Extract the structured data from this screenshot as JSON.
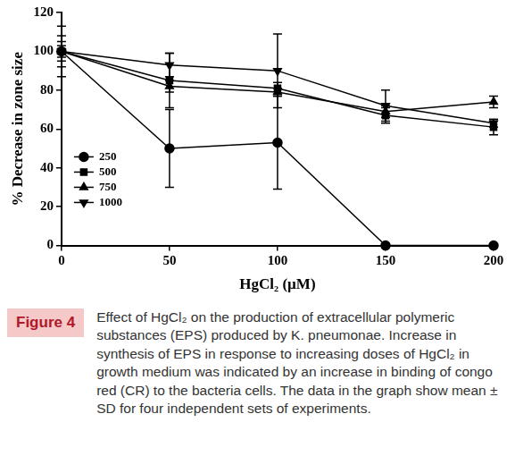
{
  "chart_data": {
    "type": "line",
    "x_label": "HgCl₂ (µM)",
    "y_label": "% Decrease in zone size",
    "xlim": [
      0,
      200
    ],
    "xticks": [
      0,
      50,
      100,
      150,
      200
    ],
    "ylim": [
      0,
      120
    ],
    "yticks": [
      0,
      20,
      40,
      60,
      80,
      100,
      120
    ],
    "grid": false,
    "legend": "left",
    "series": [
      {
        "name": "250",
        "color": "#000000",
        "marker": "circle",
        "x": [
          0,
          50,
          100,
          150,
          200
        ],
        "values": [
          100,
          50,
          53,
          0,
          0
        ],
        "errors": [
          13,
          20,
          24,
          0,
          0
        ]
      },
      {
        "name": "500",
        "color": "#000000",
        "marker": "square",
        "x": [
          0,
          50,
          100,
          150,
          200
        ],
        "values": [
          100,
          85,
          81,
          67,
          61
        ],
        "errors": [
          8,
          14,
          3,
          4,
          4
        ]
      },
      {
        "name": "750",
        "color": "#000000",
        "marker": "triangle",
        "x": [
          0,
          50,
          100,
          150,
          200
        ],
        "values": [
          100,
          82,
          79,
          69,
          74
        ],
        "errors": [
          5,
          3,
          2,
          3,
          3
        ]
      },
      {
        "name": "1000",
        "color": "#000000",
        "marker": "triangle-down",
        "x": [
          0,
          50,
          100,
          150,
          200
        ],
        "values": [
          100,
          93,
          90,
          72,
          63
        ],
        "errors": [
          3,
          6,
          19,
          8,
          2
        ]
      }
    ]
  },
  "figure": {
    "label": "Figure 4",
    "caption": "Effect of HgCl₂ on the production of extracellular polymeric substances (EPS) produced by K. pneumonae. Increase in synthesis of EPS in response to increasing doses of HgCl₂ in growth medium was indicated by an increase in binding of congo red (CR) to the bacteria cells. The data in the graph show mean ± SD for four independent sets of experiments."
  }
}
